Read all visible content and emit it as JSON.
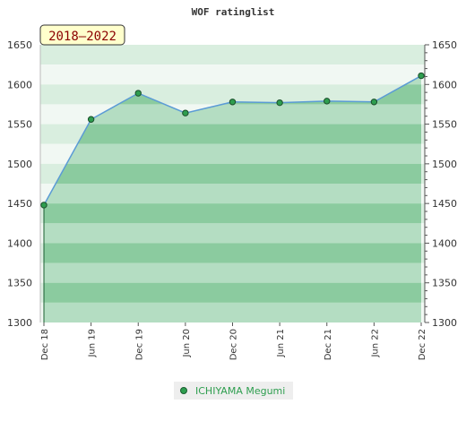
{
  "chart_data": {
    "type": "area",
    "title": "WOF ratinglist",
    "period_label": "2018–2022",
    "x": [
      "Dec 18",
      "Jun 19",
      "Dec 19",
      "Jun 20",
      "Dec 20",
      "Jun 21",
      "Dec 21",
      "Jun 22",
      "Dec 22"
    ],
    "series": [
      {
        "name": "ICHIYAMA Megumi",
        "values": [
          1448,
          1556,
          1589,
          1564,
          1578,
          1577,
          1579,
          1578,
          1611
        ]
      }
    ],
    "ylim": [
      1300,
      1650
    ],
    "yticks": [
      1300,
      1350,
      1400,
      1450,
      1500,
      1550,
      1600,
      1650
    ],
    "y_axes": [
      "left",
      "right"
    ],
    "grid": true,
    "legend_position": "bottom-center",
    "colors": {
      "fill": "#7cc494",
      "line": "#5b9bd5",
      "marker": "#2e9e4f",
      "band_dark": "#7cc494",
      "band_light": "#a9d8b8",
      "badge_bg": "#ffffcc",
      "badge_text": "#8b0000"
    }
  }
}
